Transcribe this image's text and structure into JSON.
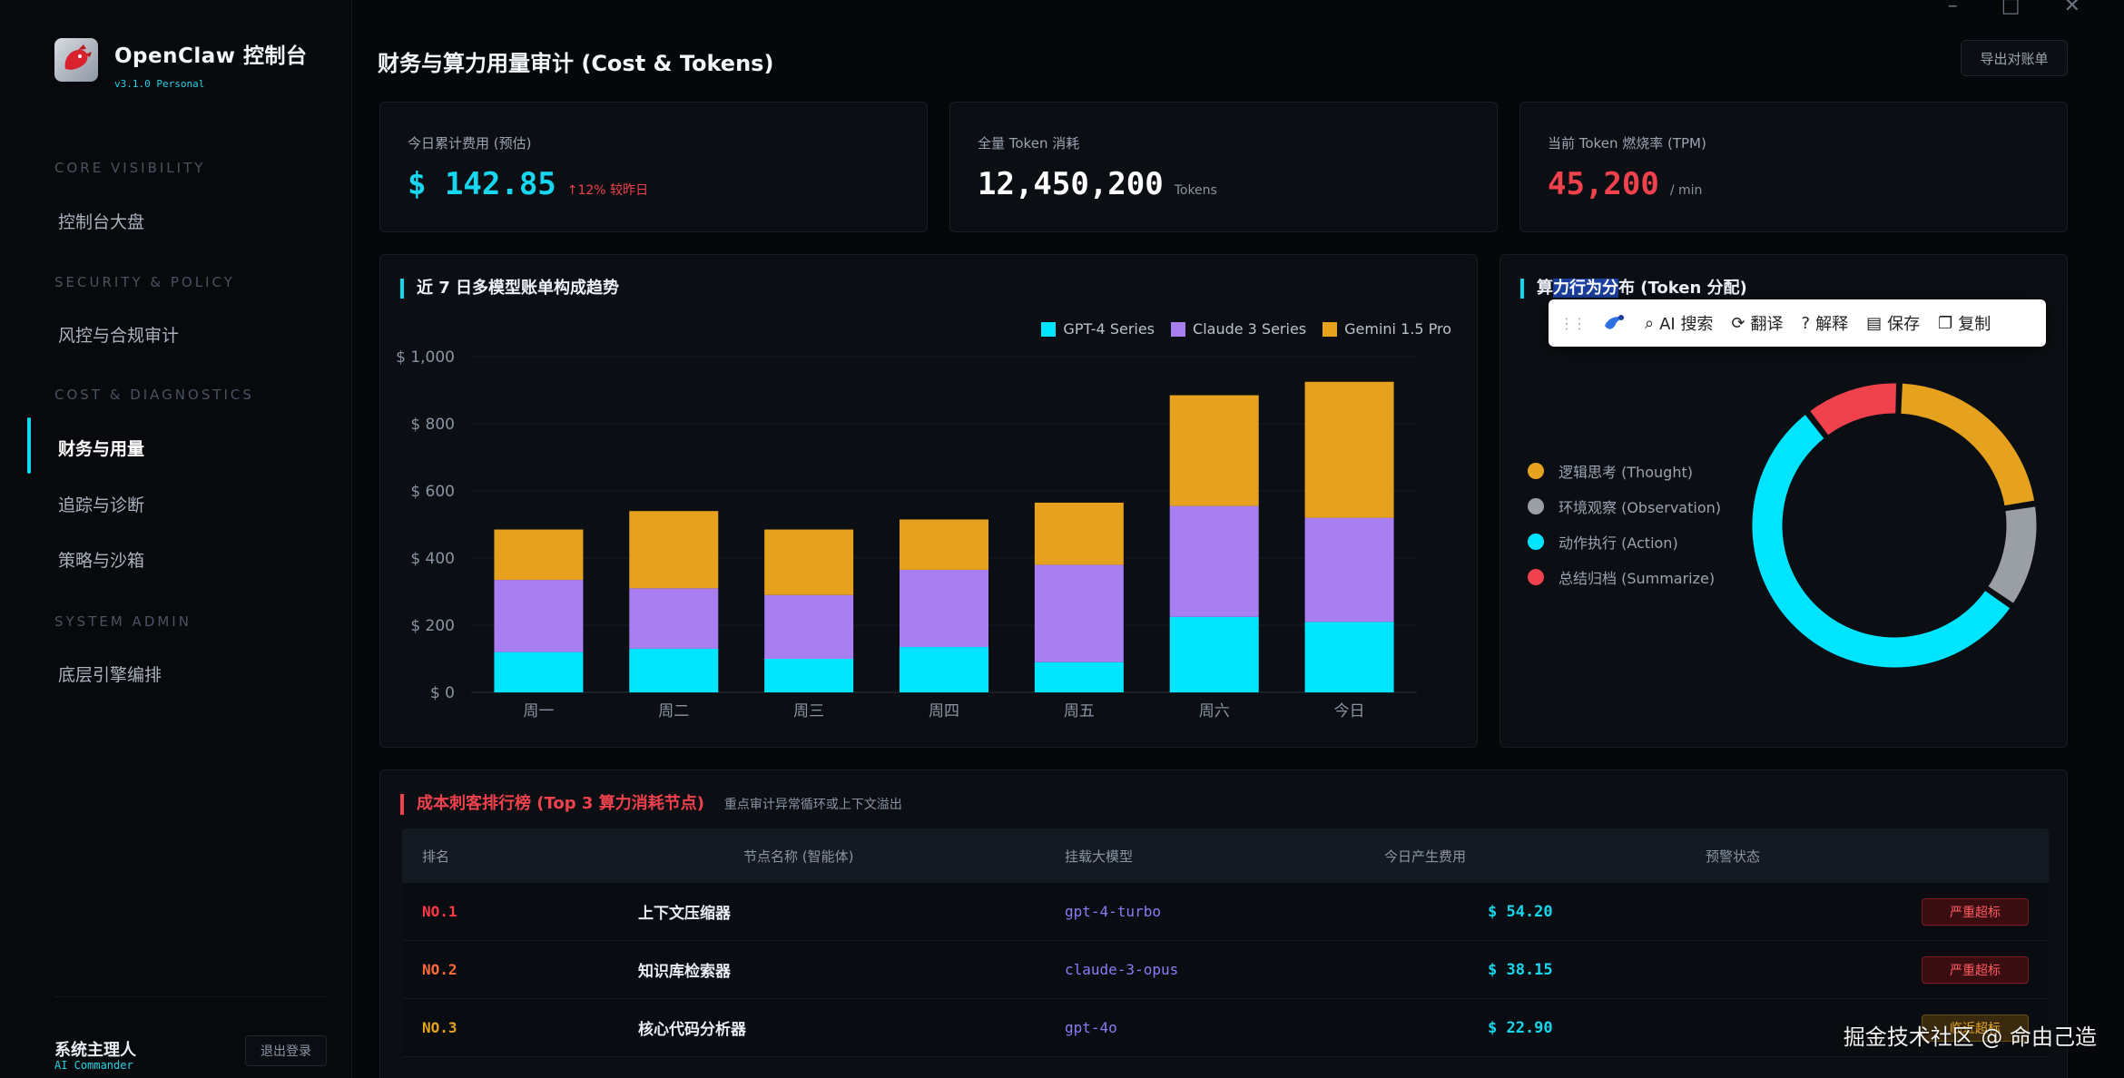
{
  "app": {
    "name": "OpenClaw 控制台",
    "version": "v3.1.0 Personal",
    "title": "财务与算力用量审计 (Cost & Tokens)",
    "export_label": "导出对账单"
  },
  "window_controls": {
    "minimize": "–",
    "maximize": "□",
    "close": "✕"
  },
  "sidebar": {
    "sections": [
      {
        "label": "CORE VISIBILITY",
        "items": [
          "控制台大盘"
        ]
      },
      {
        "label": "SECURITY & POLICY",
        "items": [
          "风控与合规审计"
        ]
      },
      {
        "label": "COST & DIAGNOSTICS",
        "items": [
          "财务与用量",
          "追踪与诊断",
          "策略与沙箱"
        ]
      },
      {
        "label": "SYSTEM ADMIN",
        "items": [
          "底层引擎编排"
        ]
      }
    ],
    "active_item": "财务与用量",
    "user": {
      "name": "系统主理人",
      "role": "AI Commander",
      "logout": "退出登录"
    }
  },
  "kpis": [
    {
      "label": "今日累计费用 (预估)",
      "value": "$ 142.85",
      "trend": "↑12% 较昨日",
      "color": "#16d7ef"
    },
    {
      "label": "全量 Token 消耗",
      "value": "12,450,200",
      "unit": "Tokens",
      "color": "#ffffff"
    },
    {
      "label": "当前 Token 燃烧率 (TPM)",
      "value": "45,200",
      "unit": "/ min",
      "color": "#f0424d"
    }
  ],
  "chart_data": [
    {
      "type": "bar",
      "stacked": true,
      "title": "近 7 日多模型账单构成趋势",
      "categories": [
        "周一",
        "周二",
        "周三",
        "周四",
        "周五",
        "周六",
        "今日"
      ],
      "series": [
        {
          "name": "GPT-4 Series",
          "color": "#00e5ff",
          "values": [
            120,
            130,
            100,
            135,
            90,
            225,
            210
          ]
        },
        {
          "name": "Claude 3 Series",
          "color": "#a97ef0",
          "values": [
            215,
            180,
            190,
            230,
            290,
            330,
            310
          ]
        },
        {
          "name": "Gemini 1.5 Pro",
          "color": "#e6a21e",
          "values": [
            150,
            230,
            195,
            150,
            185,
            330,
            405
          ]
        }
      ],
      "ylim": [
        0,
        1000
      ],
      "yticks": [
        "$ 0",
        "$ 200",
        "$ 400",
        "$ 600",
        "$ 800",
        "$ 1,000"
      ],
      "legend_position": "top-right"
    },
    {
      "type": "pie",
      "donut": true,
      "title_parts": [
        "算",
        "力行为分",
        "布 (Token 分配)"
      ],
      "slices": [
        {
          "name": "逻辑思考 (Thought)",
          "value": 22,
          "color": "#e6a21e"
        },
        {
          "name": "环境观察 (Observation)",
          "value": 12,
          "color": "#9a9ea5"
        },
        {
          "name": "动作执行 (Action)",
          "value": 55,
          "color": "#00e5ff"
        },
        {
          "name": "总结归档 (Summarize)",
          "value": 11,
          "color": "#f0424d"
        }
      ],
      "legend_position": "left"
    }
  ],
  "toolbar": {
    "items": [
      "AI 搜索",
      "翻译",
      "解释",
      "保存",
      "复制"
    ]
  },
  "ranking": {
    "title": "成本刺客排行榜 (Top 3 算力消耗节点)",
    "subtitle": "重点审计异常循环或上下文溢出",
    "headers": [
      "排名",
      "节点名称 (智能体)",
      "挂载大模型",
      "今日产生费用",
      "预警状态"
    ],
    "rows": [
      {
        "rank": "NO.1",
        "node": "上下文压缩器",
        "model": "gpt-4-turbo",
        "cost": "$ 54.20",
        "status": "严重超标",
        "level": "red",
        "rank_color": "#ff3a44"
      },
      {
        "rank": "NO.2",
        "node": "知识库检索器",
        "model": "claude-3-opus",
        "cost": "$ 38.15",
        "status": "严重超标",
        "level": "red",
        "rank_color": "#ff6a3a"
      },
      {
        "rank": "NO.3",
        "node": "核心代码分析器",
        "model": "gpt-4o",
        "cost": "$ 22.90",
        "status": "临近超标",
        "level": "amber",
        "rank_color": "#e6a21e"
      }
    ]
  },
  "watermark": "掘金技术社区 @ 命由己造"
}
